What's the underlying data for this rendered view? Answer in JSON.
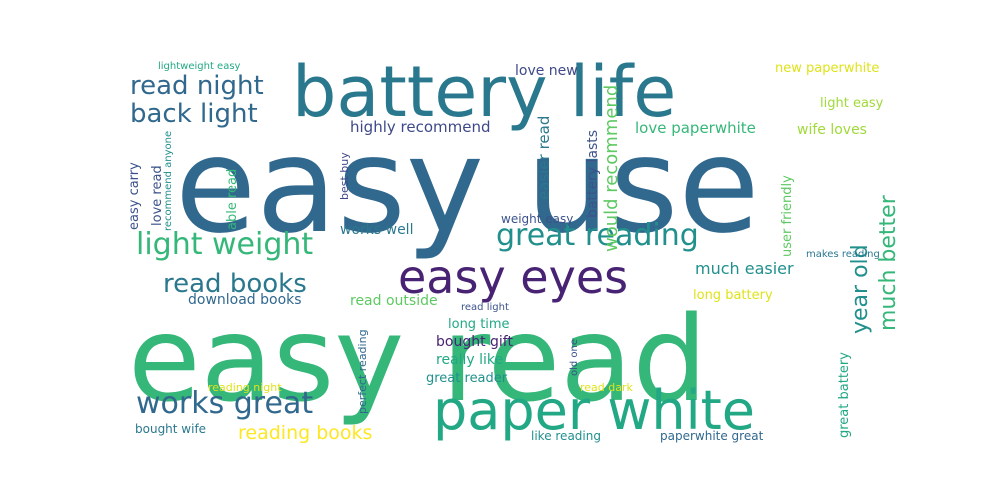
{
  "word_cloud": {
    "palette": {
      "dark_purple": "#482374",
      "indigo": "#3f4889",
      "slate_blue": "#3b528b",
      "steel": "#31688e",
      "teal": "#2a788e",
      "teal_green": "#21908d",
      "green_teal": "#22a884",
      "green": "#35b779",
      "light_green": "#5ec962",
      "lime": "#a0da39",
      "yellow": "#dfe318",
      "bright_yellow": "#fde725"
    },
    "words": [
      {
        "text": "easy use",
        "color": "#31688e",
        "orientation": "horizontal"
      },
      {
        "text": "easy read",
        "color": "#35b779",
        "orientation": "horizontal"
      },
      {
        "text": "battery life",
        "color": "#2a788e",
        "orientation": "horizontal"
      },
      {
        "text": "paper white",
        "color": "#22a884",
        "orientation": "horizontal"
      },
      {
        "text": "easy eyes",
        "color": "#482374",
        "orientation": "horizontal"
      },
      {
        "text": "great reading",
        "color": "#21908d",
        "orientation": "horizontal"
      },
      {
        "text": "light weight",
        "color": "#35b779",
        "orientation": "horizontal"
      },
      {
        "text": "works great",
        "color": "#31688e",
        "orientation": "horizontal"
      },
      {
        "text": "read night",
        "color": "#31688e",
        "orientation": "horizontal"
      },
      {
        "text": "back light",
        "color": "#31688e",
        "orientation": "horizontal"
      },
      {
        "text": "read books",
        "color": "#2a788e",
        "orientation": "horizontal"
      },
      {
        "text": "reading books",
        "color": "#fde725",
        "orientation": "horizontal"
      },
      {
        "text": "much better",
        "color": "#35b779",
        "orientation": "vertical"
      },
      {
        "text": "year old",
        "color": "#21908d",
        "orientation": "vertical"
      },
      {
        "text": "would recommend",
        "color": "#5ec962",
        "orientation": "vertical"
      },
      {
        "text": "much easier",
        "color": "#21908d",
        "orientation": "horizontal"
      },
      {
        "text": "love paperwhite",
        "color": "#35b779",
        "orientation": "horizontal"
      },
      {
        "text": "highly recommend",
        "color": "#3f4889",
        "orientation": "horizontal"
      },
      {
        "text": "easier read",
        "color": "#2a788e",
        "orientation": "vertical"
      },
      {
        "text": "battery lasts",
        "color": "#3b528b",
        "orientation": "vertical"
      },
      {
        "text": "love new",
        "color": "#3f4889",
        "orientation": "horizontal"
      },
      {
        "text": "new paperwhite",
        "color": "#dfe318",
        "orientation": "horizontal"
      },
      {
        "text": "light easy",
        "color": "#a0da39",
        "orientation": "horizontal"
      },
      {
        "text": "wife loves",
        "color": "#a0da39",
        "orientation": "horizontal"
      },
      {
        "text": "user friendly",
        "color": "#5ec962",
        "orientation": "vertical"
      },
      {
        "text": "long battery",
        "color": "#dfe318",
        "orientation": "horizontal"
      },
      {
        "text": "makes reading",
        "color": "#2a788e",
        "orientation": "horizontal"
      },
      {
        "text": "great battery",
        "color": "#22a884",
        "orientation": "vertical"
      },
      {
        "text": "easy carry",
        "color": "#3b528b",
        "orientation": "vertical"
      },
      {
        "text": "love read",
        "color": "#3b528b",
        "orientation": "vertical"
      },
      {
        "text": "recommend anyone",
        "color": "#21908d",
        "orientation": "vertical"
      },
      {
        "text": "able read",
        "color": "#35b779",
        "orientation": "vertical"
      },
      {
        "text": "best buy",
        "color": "#3f4889",
        "orientation": "vertical"
      },
      {
        "text": "lightweight easy",
        "color": "#22a884",
        "orientation": "horizontal"
      },
      {
        "text": "weight easy",
        "color": "#3b528b",
        "orientation": "horizontal"
      },
      {
        "text": "works well",
        "color": "#2a788e",
        "orientation": "horizontal"
      },
      {
        "text": "download books",
        "color": "#31688e",
        "orientation": "horizontal"
      },
      {
        "text": "read outside",
        "color": "#5ec962",
        "orientation": "horizontal"
      },
      {
        "text": "read light",
        "color": "#3b528b",
        "orientation": "horizontal"
      },
      {
        "text": "long time",
        "color": "#22a884",
        "orientation": "horizontal"
      },
      {
        "text": "bought gift",
        "color": "#482374",
        "orientation": "horizontal"
      },
      {
        "text": "really like",
        "color": "#22a884",
        "orientation": "horizontal"
      },
      {
        "text": "great reader",
        "color": "#21908d",
        "orientation": "horizontal"
      },
      {
        "text": "perfect reading",
        "color": "#31688e",
        "orientation": "vertical"
      },
      {
        "text": "old one",
        "color": "#3b528b",
        "orientation": "vertical"
      },
      {
        "text": "reading night",
        "color": "#dfe318",
        "orientation": "horizontal"
      },
      {
        "text": "read dark",
        "color": "#dfe318",
        "orientation": "horizontal"
      },
      {
        "text": "bought wife",
        "color": "#2a788e",
        "orientation": "horizontal"
      },
      {
        "text": "like reading",
        "color": "#21908d",
        "orientation": "horizontal"
      },
      {
        "text": "paperwhite great",
        "color": "#31688e",
        "orientation": "horizontal"
      }
    ]
  }
}
